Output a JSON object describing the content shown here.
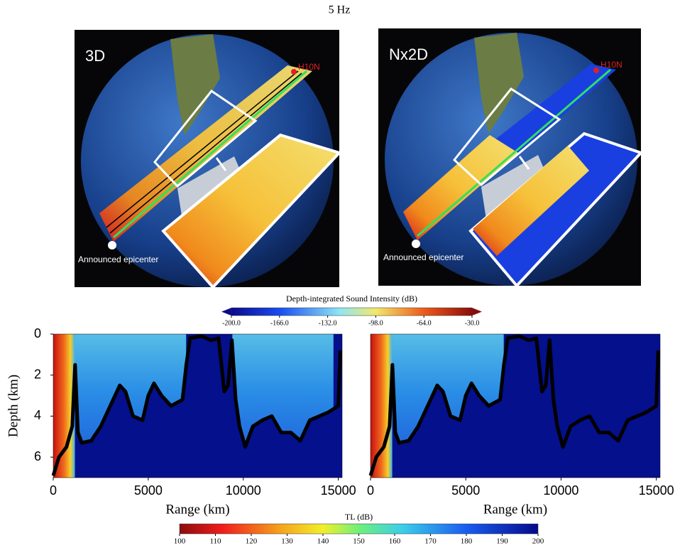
{
  "title": "5 Hz",
  "maps": [
    {
      "label": "3D",
      "station": "H10N",
      "source": "Announced epicenter"
    },
    {
      "label": "Nx2D",
      "station": "H10N",
      "source": "Announced epicenter"
    }
  ],
  "chart_data": [
    {
      "type": "colorbar",
      "title": "Depth-integrated Sound Intensity (dB)",
      "xlim": [
        -200,
        -30
      ],
      "xticks": [
        {
          "value": -200,
          "label": "-200.0"
        },
        {
          "value": -166,
          "label": "-166.0"
        },
        {
          "value": -132,
          "label": "-132.0"
        },
        {
          "value": -98,
          "label": "-98.0"
        },
        {
          "value": -64,
          "label": "-64.0"
        },
        {
          "value": -30,
          "label": "-30.0"
        }
      ]
    },
    {
      "type": "heatmap",
      "xlabel": "Range (km)",
      "ylabel": "Depth (km)",
      "xlim": [
        0,
        15200
      ],
      "ylim": [
        0,
        7
      ],
      "y_inverted": true,
      "xticks": [
        0,
        5000,
        10000,
        15000
      ],
      "yticks": [
        0,
        2,
        4,
        6
      ],
      "x": [
        0,
        300,
        700,
        1000,
        1150,
        1300,
        1500,
        2000,
        2500,
        3000,
        3500,
        3800,
        4200,
        4700,
        5000,
        5300,
        5700,
        6200,
        6800,
        7000,
        7200,
        7800,
        8300,
        8700,
        9000,
        9200,
        9400,
        9600,
        9800,
        10100,
        10500,
        11000,
        11500,
        12000,
        12500,
        13000,
        13500,
        14000,
        14500,
        15000,
        15100
      ],
      "values": [
        6.9,
        6.0,
        5.5,
        4.5,
        1.5,
        4.8,
        5.3,
        5.2,
        4.5,
        3.5,
        2.5,
        2.8,
        4.0,
        4.2,
        3.0,
        2.4,
        3.0,
        3.5,
        3.2,
        1.5,
        0.2,
        0.1,
        0.3,
        0.2,
        2.8,
        2.5,
        0.3,
        3.2,
        4.5,
        5.5,
        4.5,
        4.2,
        4.0,
        4.8,
        4.8,
        5.2,
        4.2,
        4.0,
        3.8,
        3.5,
        0.8
      ]
    },
    {
      "type": "heatmap",
      "xlabel": "Range (km)",
      "xlim": [
        0,
        15200
      ],
      "ylim": [
        0,
        7
      ],
      "y_inverted": true,
      "xticks": [
        0,
        5000,
        10000,
        15000
      ],
      "x": [
        0,
        300,
        700,
        1000,
        1150,
        1300,
        1500,
        2000,
        2500,
        3000,
        3500,
        3800,
        4200,
        4700,
        5000,
        5300,
        5700,
        6200,
        6800,
        7000,
        7200,
        7800,
        8300,
        8700,
        9000,
        9200,
        9400,
        9600,
        9800,
        10100,
        10500,
        11000,
        11500,
        12000,
        12500,
        13000,
        13500,
        14000,
        14500,
        15000,
        15100
      ],
      "values": [
        6.9,
        6.0,
        5.5,
        4.5,
        1.5,
        4.8,
        5.3,
        5.2,
        4.5,
        3.5,
        2.5,
        2.8,
        4.0,
        4.2,
        3.0,
        2.4,
        3.0,
        3.5,
        3.2,
        1.5,
        0.2,
        0.1,
        0.3,
        0.2,
        2.8,
        2.5,
        0.3,
        3.2,
        4.5,
        5.5,
        4.5,
        4.2,
        4.0,
        4.8,
        4.8,
        5.2,
        4.2,
        4.0,
        3.8,
        3.5,
        0.8
      ]
    },
    {
      "type": "colorbar",
      "title": "TL (dB)",
      "xlim": [
        100,
        200
      ],
      "reversed_colors": true,
      "xticks": [
        100,
        110,
        120,
        130,
        140,
        150,
        160,
        170,
        180,
        190,
        200
      ]
    }
  ]
}
